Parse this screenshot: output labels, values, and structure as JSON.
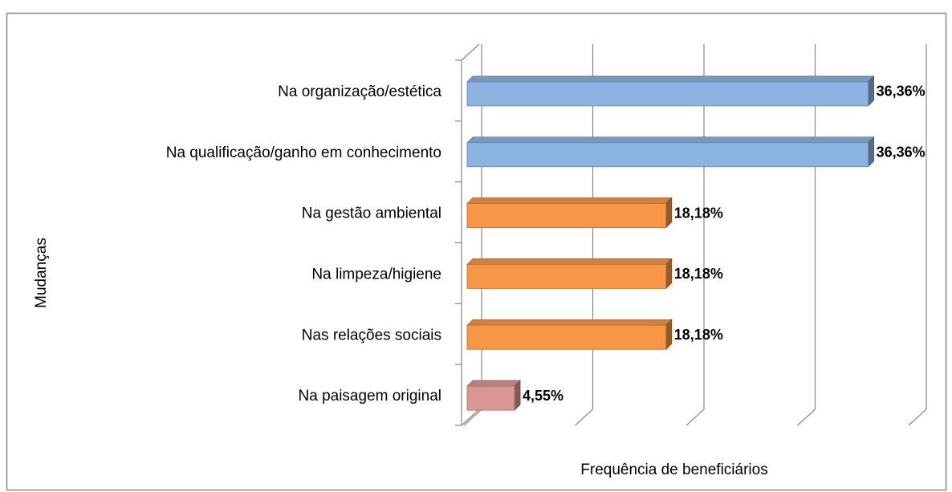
{
  "chart_data": {
    "type": "bar3d_horizontal",
    "ylabel": "Mudanças",
    "xlabel": "Frequência de beneficiários",
    "categories": [
      "Na organização/estética",
      "Na qualificação/ganho em conhecimento",
      "Na gestão ambiental",
      "Na limpeza/higiene",
      "Nas relações sociais",
      "Na paisagem original"
    ],
    "values": [
      36.36,
      36.36,
      18.18,
      18.18,
      18.18,
      4.55
    ],
    "value_labels": [
      "36,36%",
      "36,36%",
      "18,18%",
      "18,18%",
      "18,18%",
      "4,55%"
    ],
    "colors": [
      "#8db3e2",
      "#8db3e2",
      "#f79646",
      "#f79646",
      "#f79646",
      "#d99694"
    ],
    "xlim": [
      0,
      40
    ],
    "xticks": [
      0,
      10,
      20,
      30,
      40
    ],
    "grid": true
  }
}
